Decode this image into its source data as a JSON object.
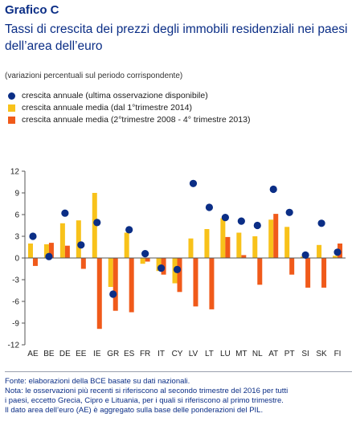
{
  "header": {
    "label": "Grafico C",
    "title": "Tassi di crescita dei prezzi degli immobili residenziali nei paesi dell’area dell’euro",
    "units_note": "(variazioni percentuali sul periodo corrispondente)"
  },
  "colors": {
    "dot": "#0b2e86",
    "bar1": "#f8c21a",
    "bar2": "#f05a1a",
    "title": "#0b2e86"
  },
  "footer": {
    "source": "Fonte: elaborazioni della BCE basate su dati nazionali.",
    "note1": "Nota: le osservazioni più recenti si riferiscono al secondo trimestre del 2016 per tutti",
    "note2": "i paesi, eccetto Grecia, Cipro e Lituania, per i quali si riferiscono al primo trimestre.",
    "note3": "Il dato area dell’euro (AE) è aggregato sulla base delle ponderazioni del PIL."
  },
  "chart_data": {
    "type": "bar",
    "categories": [
      "AE",
      "BE",
      "DE",
      "EE",
      "IE",
      "GR",
      "ES",
      "FR",
      "IT",
      "CY",
      "LV",
      "LT",
      "LU",
      "MT",
      "NL",
      "AT",
      "PT",
      "SI",
      "SK",
      "FI"
    ],
    "series": [
      {
        "name": "crescita annuale media (dal 1°trimestre 2014)",
        "kind": "bar",
        "values": [
          2.0,
          1.9,
          4.8,
          5.2,
          9.0,
          -4.0,
          3.5,
          -0.8,
          -1.8,
          -3.5,
          2.7,
          4.0,
          5.5,
          3.5,
          3.0,
          5.3,
          4.3,
          0.2,
          1.8,
          0.3
        ]
      },
      {
        "name": "crescita annuale media (2°trimestre 2008 - 4° trimestre 2013)",
        "kind": "bar",
        "values": [
          -1.1,
          2.1,
          1.7,
          -1.5,
          -9.8,
          -7.3,
          -7.5,
          -0.5,
          -2.3,
          -4.7,
          -6.7,
          -7.1,
          2.9,
          0.4,
          -3.7,
          6.1,
          -2.3,
          -4.1,
          -4.1,
          2.0
        ]
      },
      {
        "name": "crescita annuale (ultima osservazione disponibile)",
        "kind": "dot",
        "values": [
          3.0,
          0.2,
          6.2,
          1.8,
          4.9,
          -5.0,
          3.9,
          0.6,
          -1.4,
          -1.6,
          10.3,
          7.0,
          5.6,
          5.1,
          4.5,
          9.5,
          6.3,
          0.4,
          4.8,
          0.8
        ]
      }
    ],
    "xlabel": "",
    "ylabel": "",
    "ylim": [
      -12,
      12
    ],
    "yticks": [
      12,
      9,
      6,
      3,
      0,
      -3,
      -6,
      -9,
      -12
    ],
    "grid": false,
    "legend_position": "top-left"
  }
}
